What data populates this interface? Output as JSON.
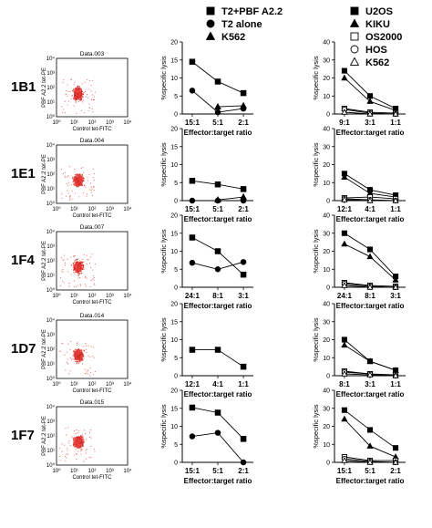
{
  "legends": {
    "t2": [
      {
        "label": "T2+PBF A2.2",
        "marker": "square-filled"
      },
      {
        "label": "T2 alone",
        "marker": "circle-filled"
      },
      {
        "label": "K562",
        "marker": "triangle-filled"
      }
    ],
    "tumor": [
      {
        "label": "U2OS",
        "marker": "square-filled"
      },
      {
        "label": "KIKU",
        "marker": "triangle-filled"
      },
      {
        "label": "OS2000",
        "marker": "square-open"
      },
      {
        "label": "HOS",
        "marker": "circle-open"
      },
      {
        "label": "K562",
        "marker": "triangle-open"
      }
    ]
  },
  "flow": {
    "ylabel": "PBF A2.2 tet-PE",
    "xlabel": "Control tet-FITC",
    "ticks": [
      "10⁰",
      "10¹",
      "10²",
      "10³",
      "10⁴"
    ]
  },
  "chart_data": [
    {
      "clone": "1B1",
      "flow_title": "Data.003",
      "type": "line",
      "t2": {
        "type": "line",
        "ylabel": "%specific lysis",
        "xlabel": "Effector:target ratio",
        "categories": [
          "15:1",
          "5:1",
          "2:1"
        ],
        "ylim": [
          0,
          20
        ],
        "yticks": [
          0,
          5,
          10,
          15,
          20
        ],
        "series": [
          {
            "name": "T2+PBF A2.2",
            "marker": "square-filled",
            "values": [
              14.5,
              9,
              5.8
            ]
          },
          {
            "name": "T2 alone",
            "marker": "circle-filled",
            "values": [
              6.5,
              0.5,
              1.5
            ]
          },
          {
            "name": "K562",
            "marker": "triangle-filled",
            "values": [
              null,
              2,
              2.3
            ]
          }
        ]
      },
      "tumor": {
        "type": "line",
        "ylabel": "%specific lysis",
        "xlabel": "Effector:target ratio",
        "categories": [
          "9:1",
          "3:1",
          "1:1"
        ],
        "ylim": [
          0,
          40
        ],
        "yticks": [
          0,
          10,
          20,
          30,
          40
        ],
        "series": [
          {
            "name": "U2OS",
            "marker": "square-filled",
            "values": [
              24,
              10,
              3
            ]
          },
          {
            "name": "KIKU",
            "marker": "triangle-filled",
            "values": [
              20,
              7,
              2
            ]
          },
          {
            "name": "OS2000",
            "marker": "square-open",
            "values": [
              3,
              1,
              0.5
            ]
          },
          {
            "name": "HOS",
            "marker": "circle-open",
            "values": [
              2.5,
              0.5,
              0
            ]
          },
          {
            "name": "K562",
            "marker": "triangle-open",
            "values": [
              1,
              0,
              0
            ]
          }
        ]
      }
    },
    {
      "clone": "1E1",
      "flow_title": "Data.004",
      "type": "line",
      "t2": {
        "type": "line",
        "ylabel": "%specific lysis",
        "xlabel": "Effector:target ratio",
        "categories": [
          "15:1",
          "5:1",
          "2:1"
        ],
        "ylim": [
          0,
          20
        ],
        "yticks": [
          0,
          5,
          10,
          15,
          20
        ],
        "series": [
          {
            "name": "T2+PBF A2.2",
            "marker": "square-filled",
            "values": [
              5.5,
              4.5,
              3.2
            ]
          },
          {
            "name": "T2 alone",
            "marker": "circle-filled",
            "values": [
              0,
              0,
              0
            ]
          },
          {
            "name": "K562",
            "marker": "triangle-filled",
            "values": [
              null,
              0.2,
              1
            ]
          }
        ]
      },
      "tumor": {
        "type": "line",
        "ylabel": "%specific lysis",
        "xlabel": "Effector:target ratio",
        "categories": [
          "12:1",
          "4:1",
          "1:1"
        ],
        "ylim": [
          0,
          40
        ],
        "yticks": [
          0,
          10,
          20,
          30,
          40
        ],
        "series": [
          {
            "name": "U2OS",
            "marker": "square-filled",
            "values": [
              15,
              6,
              3
            ]
          },
          {
            "name": "KIKU",
            "marker": "triangle-filled",
            "values": [
              13,
              4,
              2
            ]
          },
          {
            "name": "OS2000",
            "marker": "square-open",
            "values": [
              1.5,
              2,
              1
            ]
          },
          {
            "name": "HOS",
            "marker": "circle-open",
            "values": [
              1,
              0.5,
              0
            ]
          },
          {
            "name": "K562",
            "marker": "triangle-open",
            "values": [
              0.5,
              0,
              0
            ]
          }
        ]
      }
    },
    {
      "clone": "1F4",
      "flow_title": "Data.007",
      "type": "line",
      "t2": {
        "type": "line",
        "ylabel": "%specific lysis",
        "xlabel": "Effector:target ratio",
        "categories": [
          "24:1",
          "8:1",
          "3:1"
        ],
        "ylim": [
          0,
          20
        ],
        "yticks": [
          0,
          5,
          10,
          15,
          20
        ],
        "series": [
          {
            "name": "T2+PBF A2.2",
            "marker": "square-filled",
            "values": [
              13.8,
              10,
              3.5
            ]
          },
          {
            "name": "T2 alone",
            "marker": "circle-filled",
            "values": [
              6.8,
              5,
              7
            ]
          },
          {
            "name": "K562",
            "marker": "triangle-filled",
            "values": [
              null,
              null,
              null
            ]
          }
        ]
      },
      "tumor": {
        "type": "line",
        "ylabel": "%specific lysis",
        "xlabel": "Effector:target ratio",
        "categories": [
          "24:1",
          "8:1",
          "3:1"
        ],
        "ylim": [
          0,
          40
        ],
        "yticks": [
          0,
          10,
          20,
          30,
          40
        ],
        "series": [
          {
            "name": "U2OS",
            "marker": "square-filled",
            "values": [
              30,
              21,
              6
            ]
          },
          {
            "name": "KIKU",
            "marker": "triangle-filled",
            "values": [
              24,
              17,
              4
            ]
          },
          {
            "name": "OS2000",
            "marker": "square-open",
            "values": [
              2.5,
              1,
              0.5
            ]
          },
          {
            "name": "HOS",
            "marker": "circle-open",
            "values": [
              2,
              0.5,
              0
            ]
          },
          {
            "name": "K562",
            "marker": "triangle-open",
            "values": [
              1,
              0,
              0
            ]
          }
        ]
      }
    },
    {
      "clone": "1D7",
      "flow_title": "Data.014",
      "type": "line",
      "t2": {
        "type": "line",
        "ylabel": "%specific lysis",
        "xlabel": "Effector:target ratio",
        "categories": [
          "12:1",
          "4:1",
          "1:1"
        ],
        "ylim": [
          0,
          20
        ],
        "yticks": [
          0,
          5,
          10,
          15,
          20
        ],
        "series": [
          {
            "name": "T2+PBF A2.2",
            "marker": "square-filled",
            "values": [
              7.2,
              7.2,
              2.5
            ]
          },
          {
            "name": "T2 alone",
            "marker": "circle-filled",
            "values": [
              null,
              null,
              null
            ]
          },
          {
            "name": "K562",
            "marker": "triangle-filled",
            "values": [
              null,
              null,
              null
            ]
          }
        ]
      },
      "tumor": {
        "type": "line",
        "ylabel": "%specific lysis",
        "xlabel": "Effector:target ratio",
        "categories": [
          "8:1",
          "3:1",
          "1:1"
        ],
        "ylim": [
          0,
          40
        ],
        "yticks": [
          0,
          10,
          20,
          30,
          40
        ],
        "series": [
          {
            "name": "U2OS",
            "marker": "square-filled",
            "values": [
              20,
              8,
              3
            ]
          },
          {
            "name": "KIKU",
            "marker": "triangle-filled",
            "values": [
              17,
              8,
              3
            ]
          },
          {
            "name": "OS2000",
            "marker": "square-open",
            "values": [
              2.5,
              1,
              0.5
            ]
          },
          {
            "name": "HOS",
            "marker": "circle-open",
            "values": [
              2,
              1,
              0
            ]
          },
          {
            "name": "K562",
            "marker": "triangle-open",
            "values": [
              1,
              0.5,
              0
            ]
          }
        ]
      }
    },
    {
      "clone": "1F7",
      "flow_title": "Data.015",
      "type": "line",
      "t2": {
        "type": "line",
        "ylabel": "%specific lysis",
        "xlabel": "Effector:target ratio",
        "categories": [
          "15:1",
          "5:1",
          "2:1"
        ],
        "ylim": [
          0,
          20
        ],
        "yticks": [
          0,
          5,
          10,
          15,
          20
        ],
        "series": [
          {
            "name": "T2+PBF A2.2",
            "marker": "square-filled",
            "values": [
              15.2,
              13.8,
              6.5
            ]
          },
          {
            "name": "T2 alone",
            "marker": "circle-filled",
            "values": [
              7.2,
              8.2,
              0
            ]
          },
          {
            "name": "K562",
            "marker": "triangle-filled",
            "values": [
              null,
              null,
              null
            ]
          }
        ]
      },
      "tumor": {
        "type": "line",
        "ylabel": "%specific lysis",
        "xlabel": "Effector:target ratio",
        "categories": [
          "15:1",
          "5:1",
          "2:1"
        ],
        "ylim": [
          0,
          40
        ],
        "yticks": [
          0,
          10,
          20,
          30,
          40
        ],
        "series": [
          {
            "name": "U2OS",
            "marker": "square-filled",
            "values": [
              29,
              18,
              8
            ]
          },
          {
            "name": "KIKU",
            "marker": "triangle-filled",
            "values": [
              24,
              9,
              3
            ]
          },
          {
            "name": "OS2000",
            "marker": "square-open",
            "values": [
              3,
              1,
              1
            ]
          },
          {
            "name": "HOS",
            "marker": "circle-open",
            "values": [
              2,
              0.5,
              0
            ]
          },
          {
            "name": "K562",
            "marker": "triangle-open",
            "values": [
              1,
              0,
              0
            ]
          }
        ]
      }
    }
  ]
}
